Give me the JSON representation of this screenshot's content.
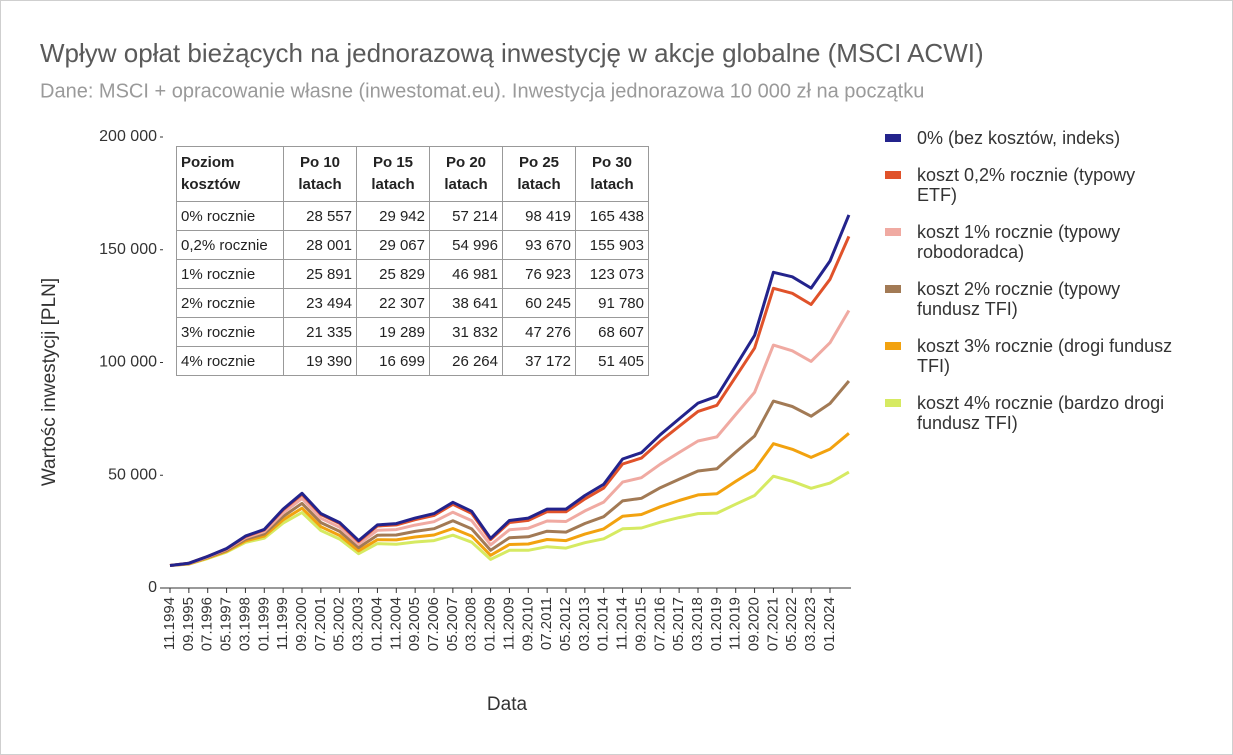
{
  "chart_data": {
    "type": "line",
    "title": "Wpływ opłat bieżących na jednorazową inwestycję w akcje globalne (MSCI ACWI)",
    "subtitle": "Dane: MSCI + opracowanie własne (inwestomat.eu). Inwestycja jednorazowa 10 000 zł na początku",
    "x_label": "Data",
    "y_label": "Wartośc inwestycji [PLN]",
    "categories": [
      "11.1994",
      "09.1995",
      "07.1996",
      "05.1997",
      "03.1998",
      "01.1999",
      "11.1999",
      "09.2000",
      "07.2001",
      "05.2002",
      "03.2003",
      "01.2004",
      "11.2004",
      "09.2005",
      "07.2006",
      "05.2007",
      "03.2008",
      "01.2009",
      "11.2009",
      "09.2010",
      "07.2011",
      "05.2012",
      "03.2013",
      "01.2014",
      "11.2014",
      "09.2015",
      "07.2016",
      "05.2017",
      "03.2018",
      "01.2019",
      "11.2019",
      "09.2020",
      "07.2021",
      "05.2022",
      "03.2023",
      "01.2024",
      null
    ],
    "ylim": [
      0,
      200000
    ],
    "yticks": [
      0,
      {
        "value": 50000,
        "label": "50 000"
      },
      {
        "value": 100000,
        "label": "100 000"
      },
      {
        "value": 150000,
        "label": "150 000"
      },
      {
        "value": 200000,
        "label": "200 000"
      }
    ],
    "grid": false,
    "series": [
      {
        "name": "0% (bez kosztów, indeks)",
        "color": "#23238c",
        "values": [
          10000,
          11000,
          14000,
          17500,
          23000,
          26000,
          35000,
          42000,
          33000,
          29000,
          21000,
          28000,
          28557,
          31000,
          33000,
          38000,
          34000,
          22000,
          29942,
          31000,
          35000,
          35000,
          41000,
          46000,
          57214,
          60000,
          68000,
          75000,
          82000,
          85000,
          98419,
          112000,
          140000,
          138000,
          133000,
          145000,
          165438
        ]
      },
      {
        "name": "koszt 0,2% rocznie (typowy ETF)",
        "color": "#e0522a",
        "values": [
          10000,
          11000,
          14000,
          17400,
          22800,
          25800,
          34700,
          41500,
          32600,
          28600,
          20600,
          27500,
          28001,
          30300,
          32200,
          37100,
          33100,
          21400,
          29067,
          30000,
          33900,
          33800,
          39500,
          44300,
          54996,
          57600,
          65100,
          71700,
          78300,
          81000,
          93670,
          106400,
          132900,
          130700,
          125700,
          136900,
          155903
        ]
      },
      {
        "name": "koszt 1% rocznie (typowy robodoradca)",
        "color": "#f0aaa2",
        "values": [
          10000,
          10900,
          13800,
          17100,
          22300,
          25000,
          33300,
          39700,
          30900,
          26900,
          19400,
          25600,
          25891,
          27900,
          29400,
          33600,
          29900,
          19100,
          25829,
          26500,
          29700,
          29500,
          34200,
          38100,
          46981,
          48900,
          54900,
          60100,
          65200,
          67000,
          76923,
          86800,
          107700,
          105200,
          100500,
          108800,
          123073
        ]
      },
      {
        "name": "koszt 2% rocznie (typowy fundusz TFI)",
        "color": "#a27a55",
        "values": [
          10000,
          10800,
          13600,
          16700,
          21600,
          24000,
          31700,
          37500,
          29000,
          25100,
          17900,
          23400,
          23494,
          25100,
          26300,
          29800,
          26200,
          16700,
          22307,
          22700,
          25200,
          24800,
          28600,
          31600,
          38641,
          39800,
          44500,
          48200,
          51900,
          52900,
          60245,
          67400,
          82900,
          80500,
          76200,
          81800,
          91780
        ]
      },
      {
        "name": "koszt 3% rocznie (drogi fundusz TFI)",
        "color": "#f2a20f",
        "values": [
          10000,
          10700,
          13300,
          16300,
          20900,
          23000,
          30200,
          35400,
          27200,
          23300,
          16500,
          21400,
          21335,
          22600,
          23500,
          26400,
          23000,
          14500,
          19289,
          19500,
          21500,
          21000,
          23900,
          26200,
          31832,
          32600,
          36000,
          38800,
          41300,
          41800,
          47276,
          52500,
          64000,
          61500,
          57900,
          61600,
          68607
        ]
      },
      {
        "name": "koszt 4% rocznie (bardzo drogi fundusz TFI)",
        "color": "#d6ea62",
        "values": [
          10000,
          10600,
          13100,
          15900,
          20200,
          22100,
          28800,
          33500,
          25500,
          21700,
          15200,
          19700,
          19390,
          20400,
          21000,
          23400,
          20300,
          12700,
          16699,
          16700,
          18300,
          17700,
          20100,
          21800,
          26264,
          26600,
          29200,
          31200,
          33000,
          33200,
          37172,
          41000,
          49600,
          47300,
          44200,
          46500,
          51405
        ]
      }
    ],
    "table": {
      "header": [
        "Poziom kosztów",
        "Po 10 latach",
        "Po 15 latach",
        "Po 20 latach",
        "Po 25 latach",
        "Po 30 latach"
      ],
      "rows": [
        [
          "0% rocznie",
          "28 557",
          "29 942",
          "57 214",
          "98 419",
          "165 438"
        ],
        [
          "0,2% rocznie",
          "28 001",
          "29 067",
          "54 996",
          "93 670",
          "155 903"
        ],
        [
          "1% rocznie",
          "25 891",
          "25 829",
          "46 981",
          "76 923",
          "123 073"
        ],
        [
          "2% rocznie",
          "23 494",
          "22 307",
          "38 641",
          "60 245",
          "91 780"
        ],
        [
          "3% rocznie",
          "21 335",
          "19 289",
          "31 832",
          "47 276",
          "68 607"
        ],
        [
          "4% rocznie",
          "19 390",
          "16 699",
          "26 264",
          "37 172",
          "51 405"
        ]
      ]
    }
  }
}
